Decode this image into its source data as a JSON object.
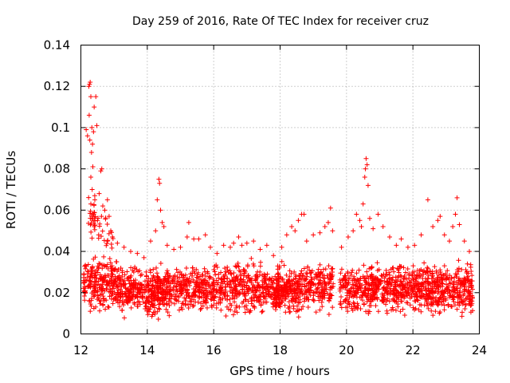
{
  "chart_data": {
    "type": "scatter",
    "title": "Day 259 of 2016, Rate Of TEC Index for receiver cruz",
    "xlabel": "GPS time / hours",
    "ylabel": "ROTI / TECUs",
    "xlim": [
      12,
      24
    ],
    "ylim": [
      0,
      0.14
    ],
    "xticks": [
      12,
      14,
      16,
      18,
      20,
      22,
      24
    ],
    "yticks": [
      0,
      0.02,
      0.04,
      0.06,
      0.08,
      0.1,
      0.12,
      0.14
    ],
    "xtick_labels": [
      "12",
      "14",
      "16",
      "18",
      "20",
      "22",
      "24"
    ],
    "ytick_labels": [
      "0",
      "0.02",
      "0.04",
      "0.06",
      "0.08",
      "0.1",
      "0.12",
      "0.14"
    ],
    "grid": true,
    "marker": "+",
    "color": "#ff0000",
    "series": [
      {
        "name": "cruz",
        "points": [
          [
            12.16,
            0.099
          ],
          [
            12.2,
            0.096
          ],
          [
            12.24,
            0.12
          ],
          [
            12.26,
            0.121
          ],
          [
            12.28,
            0.122
          ],
          [
            12.3,
            0.115
          ],
          [
            12.33,
            0.1
          ],
          [
            12.35,
            0.092
          ],
          [
            12.38,
            0.098
          ],
          [
            12.4,
            0.11
          ],
          [
            12.45,
            0.115
          ],
          [
            12.48,
            0.101
          ],
          [
            12.25,
            0.106
          ],
          [
            12.27,
            0.094
          ],
          [
            12.32,
            0.088
          ],
          [
            12.36,
            0.081
          ],
          [
            12.3,
            0.076
          ],
          [
            12.34,
            0.07
          ],
          [
            12.3,
            0.063
          ],
          [
            12.42,
            0.065
          ],
          [
            12.55,
            0.068
          ],
          [
            12.6,
            0.079
          ],
          [
            12.63,
            0.08
          ],
          [
            12.66,
            0.062
          ],
          [
            12.72,
            0.06
          ],
          [
            12.8,
            0.065
          ],
          [
            12.85,
            0.057
          ],
          [
            12.9,
            0.05
          ],
          [
            12.95,
            0.047
          ],
          [
            12.62,
            0.057
          ],
          [
            12.5,
            0.055
          ],
          [
            12.35,
            0.055
          ],
          [
            12.4,
            0.052
          ],
          [
            13.1,
            0.044
          ],
          [
            13.3,
            0.042
          ],
          [
            13.5,
            0.04
          ],
          [
            13.7,
            0.039
          ],
          [
            13.9,
            0.037
          ],
          [
            14.1,
            0.045
          ],
          [
            14.25,
            0.05
          ],
          [
            14.3,
            0.065
          ],
          [
            14.35,
            0.075
          ],
          [
            14.37,
            0.073
          ],
          [
            14.4,
            0.06
          ],
          [
            14.5,
            0.052
          ],
          [
            14.45,
            0.054
          ],
          [
            14.6,
            0.043
          ],
          [
            14.8,
            0.041
          ],
          [
            15.0,
            0.042
          ],
          [
            15.2,
            0.047
          ],
          [
            15.25,
            0.054
          ],
          [
            15.4,
            0.046
          ],
          [
            15.55,
            0.046
          ],
          [
            15.75,
            0.048
          ],
          [
            15.9,
            0.042
          ],
          [
            16.1,
            0.039
          ],
          [
            16.3,
            0.043
          ],
          [
            16.5,
            0.042
          ],
          [
            16.6,
            0.044
          ],
          [
            16.75,
            0.047
          ],
          [
            16.85,
            0.043
          ],
          [
            17.0,
            0.044
          ],
          [
            17.2,
            0.045
          ],
          [
            17.4,
            0.041
          ],
          [
            17.6,
            0.043
          ],
          [
            17.8,
            0.038
          ],
          [
            18.05,
            0.042
          ],
          [
            18.2,
            0.048
          ],
          [
            18.35,
            0.052
          ],
          [
            18.45,
            0.05
          ],
          [
            18.55,
            0.055
          ],
          [
            18.65,
            0.058
          ],
          [
            18.72,
            0.058
          ],
          [
            18.8,
            0.045
          ],
          [
            19.0,
            0.048
          ],
          [
            19.2,
            0.049
          ],
          [
            19.35,
            0.052
          ],
          [
            19.45,
            0.054
          ],
          [
            19.52,
            0.061
          ],
          [
            19.58,
            0.05
          ],
          [
            19.85,
            0.042
          ],
          [
            20.05,
            0.047
          ],
          [
            20.2,
            0.05
          ],
          [
            20.3,
            0.058
          ],
          [
            20.4,
            0.055
          ],
          [
            20.45,
            0.052
          ],
          [
            20.5,
            0.063
          ],
          [
            20.55,
            0.076
          ],
          [
            20.57,
            0.08
          ],
          [
            20.59,
            0.085
          ],
          [
            20.62,
            0.082
          ],
          [
            20.65,
            0.072
          ],
          [
            20.7,
            0.056
          ],
          [
            20.8,
            0.051
          ],
          [
            20.95,
            0.058
          ],
          [
            21.1,
            0.052
          ],
          [
            21.3,
            0.047
          ],
          [
            21.5,
            0.043
          ],
          [
            21.65,
            0.046
          ],
          [
            21.85,
            0.042
          ],
          [
            22.05,
            0.043
          ],
          [
            22.25,
            0.048
          ],
          [
            22.45,
            0.065
          ],
          [
            22.6,
            0.052
          ],
          [
            22.75,
            0.055
          ],
          [
            22.82,
            0.057
          ],
          [
            22.95,
            0.048
          ],
          [
            23.1,
            0.045
          ],
          [
            23.2,
            0.052
          ],
          [
            23.28,
            0.058
          ],
          [
            23.33,
            0.066
          ],
          [
            23.4,
            0.053
          ],
          [
            23.55,
            0.045
          ],
          [
            23.7,
            0.04
          ]
        ],
        "bands": [
          {
            "x": [
              12.08,
              13.2
            ],
            "y": [
              0.008,
              0.04
            ],
            "count": 260
          },
          {
            "x": [
              13.2,
              16.0
            ],
            "y": [
              0.007,
              0.036
            ],
            "count": 560
          },
          {
            "x": [
              13.9,
              14.7
            ],
            "y": [
              0.004,
              0.033
            ],
            "count": 80
          },
          {
            "x": [
              16.0,
              19.6
            ],
            "y": [
              0.007,
              0.038
            ],
            "count": 720
          },
          {
            "x": [
              17.8,
              18.6
            ],
            "y": [
              0.005,
              0.03
            ],
            "count": 60
          },
          {
            "x": [
              19.8,
              22.2
            ],
            "y": [
              0.007,
              0.037
            ],
            "count": 520
          },
          {
            "x": [
              22.2,
              23.8
            ],
            "y": [
              0.006,
              0.038
            ],
            "count": 380
          },
          {
            "x": [
              12.2,
              12.45
            ],
            "y": [
              0.04,
              0.075
            ],
            "count": 25
          },
          {
            "x": [
              12.5,
              13.0
            ],
            "y": [
              0.038,
              0.06
            ],
            "count": 20
          }
        ]
      }
    ]
  }
}
